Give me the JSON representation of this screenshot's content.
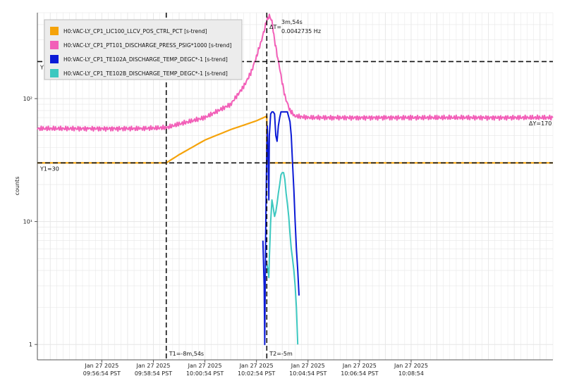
{
  "chart_data": {
    "type": "line",
    "ylabel": "counts",
    "yscale": "log",
    "ylim": [
      0.75,
      500
    ],
    "y_ticks": [
      {
        "value": 1,
        "label": "1"
      },
      {
        "value": 10,
        "label": "10¹"
      },
      {
        "value": 100,
        "label": "10²"
      }
    ],
    "xlim": [
      -17.5,
      2.5
    ],
    "x_ticks": [
      {
        "value": -15,
        "line1": "Jan 27 2025",
        "line2": "09:56:54 PST"
      },
      {
        "value": -13,
        "line1": "Jan 27 2025",
        "line2": "09:58:54 PST"
      },
      {
        "value": -11,
        "line1": "Jan 27 2025",
        "line2": "10:00:54 PST"
      },
      {
        "value": -9,
        "line1": "Jan 27 2025",
        "line2": "10:02:54 PST"
      },
      {
        "value": -7,
        "line1": "Jan 27 2025",
        "line2": "10:04:54 PST"
      },
      {
        "value": -5,
        "line1": "Jan 27 2025",
        "line2": "10:06:54 PST"
      },
      {
        "value": -3,
        "line1": "Jan 27 2025",
        "line2": "10:08:54"
      }
    ],
    "grid": true,
    "legend_position": "top-left",
    "series": [
      {
        "name": "H0:VAC-LY_CP1_LIC100_LLCV_POS_CTRL_PCT [s-trend]",
        "color": "#f5a30a",
        "x": [
          -17.5,
          -12.5,
          -12.0,
          -11.0,
          -10.0,
          -9.0,
          -8.6,
          -8.6,
          -8.5,
          2.5
        ],
        "y": [
          30,
          30,
          35,
          46,
          56,
          66,
          72,
          30,
          30,
          30
        ]
      },
      {
        "name": "H0:VAC-LY_CP1_PT101_DISCHARGE_PRESS_PSIG*1000 [s-trend]",
        "color": "#f25fb8",
        "x": [
          -17.5,
          -15.5,
          -13.5,
          -12.5,
          -12.0,
          -11.0,
          -10.0,
          -9.5,
          -9.2,
          -9.0,
          -8.8,
          -8.6,
          -8.5,
          -8.4,
          -8.3,
          -8.1,
          -7.9,
          -7.7,
          -7.5,
          -7.0,
          -6.0,
          -5.0,
          -4.0,
          -3.0,
          -2.0,
          2.5
        ],
        "y": [
          57,
          57,
          57,
          58,
          62,
          70,
          90,
          125,
          165,
          220,
          300,
          430,
          470,
          430,
          300,
          175,
          105,
          80,
          72,
          70,
          70,
          70,
          70,
          70,
          70,
          70
        ]
      },
      {
        "name": "H0:VAC-LY_CP1_TE102A_DISCHARGE_TEMP_DEGC*-1 [s-trend]",
        "color": "#0b1ad6",
        "x": [
          -8.75,
          -8.7,
          -8.68,
          -8.65,
          -8.62,
          -8.6,
          -8.58,
          -8.55,
          -8.52,
          -8.5,
          -8.45,
          -8.4,
          -8.35,
          -8.3,
          -8.25,
          -8.2,
          -8.15,
          -8.1,
          -8.05,
          -8.0,
          -7.95,
          -7.9,
          -7.8,
          -7.7,
          -7.65,
          -7.6,
          -7.55,
          -7.5,
          -7.45,
          -7.4,
          -7.35
        ],
        "y": [
          7,
          3,
          1,
          6,
          20,
          40,
          60,
          35,
          15,
          50,
          75,
          78,
          78,
          75,
          50,
          45,
          60,
          70,
          78,
          78,
          78,
          78,
          78,
          65,
          50,
          30,
          18,
          10,
          6,
          4,
          2.5
        ]
      },
      {
        "name": "H0:VAC-LY_CP1_TE102B_DISCHARGE_TEMP_DEGC*-1 [s-trend]",
        "color": "#3cc8c0",
        "x": [
          -8.6,
          -8.55,
          -8.52,
          -8.5,
          -8.45,
          -8.4,
          -8.35,
          -8.3,
          -8.25,
          -8.2,
          -8.15,
          -8.1,
          -8.05,
          -8.0,
          -7.95,
          -7.9,
          -7.85,
          -7.8,
          -7.75,
          -7.7,
          -7.65,
          -7.6,
          -7.55,
          -7.5,
          -7.45,
          -7.4
        ],
        "y": [
          4.5,
          4,
          3.5,
          5,
          10,
          15,
          13,
          11,
          12,
          14,
          17,
          20,
          24,
          25,
          25,
          22,
          17,
          14,
          11,
          8,
          6,
          5,
          4,
          3,
          2,
          1
        ]
      }
    ],
    "cursors": {
      "vertical": [
        {
          "x": -12.5,
          "label": "T1=-8m,54s"
        },
        {
          "x": -8.6,
          "label": "T2=-5m"
        }
      ],
      "horizontal": [
        {
          "y": 200,
          "label": "Y2=200"
        },
        {
          "y": 30,
          "label": "Y1=30"
        }
      ],
      "delta_t": {
        "label": "ΔT=",
        "value": "3m,54s",
        "frequency": "0.0042735 Hz"
      },
      "delta_y": {
        "label": "ΔY=170"
      }
    }
  },
  "colors": {
    "grid": "#e6e6e6",
    "axis": "#555555",
    "cursor": "#111111",
    "legend_bg": "#ececec",
    "legend_border": "#bcbcbc"
  }
}
